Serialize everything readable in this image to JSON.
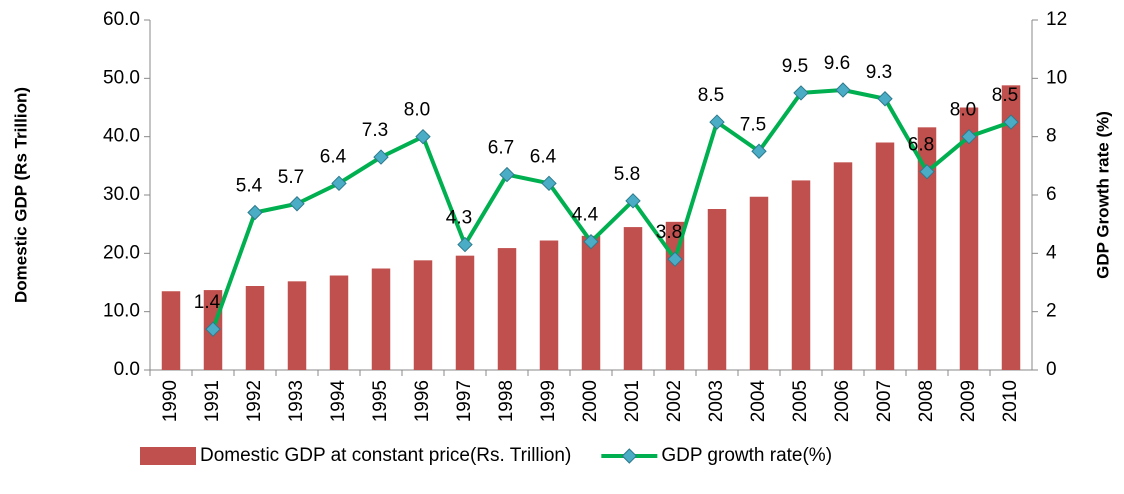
{
  "chart_data": {
    "type": "bar_line",
    "y_label": "Domestic GDP (Rs Trillion)",
    "y2_label": "GDP  Growth rate (%)",
    "categories": [
      "1990",
      "1991",
      "1992",
      "1993",
      "1994",
      "1995",
      "1996",
      "1997",
      "1998",
      "1999",
      "2000",
      "2001",
      "2002",
      "2003",
      "2004",
      "2005",
      "2006",
      "2007",
      "2008",
      "2009",
      "2010"
    ],
    "series": [
      {
        "name": "Domestic GDP at constant price(Rs. Trillion)",
        "type": "bar",
        "color": "#c0504d",
        "values": [
          13.5,
          13.7,
          14.4,
          15.2,
          16.2,
          17.4,
          18.8,
          19.6,
          20.9,
          22.2,
          23.0,
          24.5,
          25.4,
          27.6,
          29.7,
          32.5,
          35.6,
          39.0,
          41.6,
          45.0,
          48.8
        ]
      },
      {
        "name": "GDP growth rate(%)",
        "type": "line",
        "axis": "y2",
        "color": "#00b050",
        "marker_color": "#4bacc6",
        "values": [
          null,
          1.4,
          5.4,
          5.7,
          6.4,
          7.3,
          8.0,
          4.3,
          6.7,
          6.4,
          4.4,
          5.8,
          3.8,
          8.5,
          7.5,
          9.5,
          9.6,
          9.3,
          6.8,
          8.0,
          8.5
        ],
        "value_labels": [
          null,
          "1.4",
          "5.4",
          "5.7",
          "6.4",
          "7.3",
          "8.0",
          "4.3",
          "6.7",
          "6.4",
          "4.4",
          "5.8",
          "3.8",
          "8.5",
          "7.5",
          "9.5",
          "9.6",
          "9.3",
          "6.8",
          "8.0",
          "8.5"
        ]
      }
    ],
    "ylim": [
      0,
      60
    ],
    "yticks": [
      {
        "value": 0,
        "label": "0.0"
      },
      {
        "value": 10,
        "label": "10.0"
      },
      {
        "value": 20,
        "label": "20.0"
      },
      {
        "value": 30,
        "label": "30.0"
      },
      {
        "value": 40,
        "label": "40.0"
      },
      {
        "value": 50,
        "label": "50.0"
      },
      {
        "value": 60,
        "label": "60.0"
      }
    ],
    "y2lim": [
      0,
      12
    ],
    "y2ticks": [
      0,
      2,
      4,
      6,
      8,
      10,
      12
    ],
    "legend": "bottom"
  }
}
